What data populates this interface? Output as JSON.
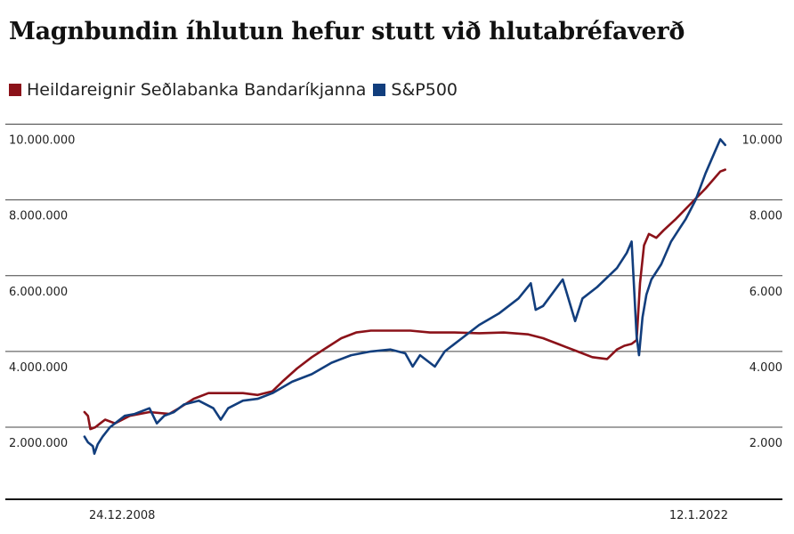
{
  "chart_data": {
    "type": "line",
    "title": "Magnbundin íhlutun hefur stutt við hlutabréfaverð",
    "legend_position": "top-left",
    "grid": true,
    "x_tick_labels": [
      "24.12.2008",
      "12.1.2022"
    ],
    "xlim": [
      2009.0,
      2022.06
    ],
    "left_axis": {
      "ticks": [
        10000000,
        8000000,
        6000000,
        4000000,
        2000000
      ],
      "tick_labels": [
        "10.000.000",
        "8.000.000",
        "6.000.000",
        "4.000.000",
        "2.000.000"
      ],
      "ylim": [
        0,
        10000000
      ]
    },
    "right_axis": {
      "ticks": [
        10000,
        8000,
        6000,
        4000,
        2000
      ],
      "tick_labels": [
        "10.000",
        "8.000",
        "6.000",
        "4.000",
        "2.000"
      ],
      "ylim": [
        0,
        10000
      ]
    },
    "series": [
      {
        "name": "Heildareignir Seðlabanka Bandaríkjanna",
        "color": "#8b1219",
        "axis": "left",
        "x": [
          2008.98,
          2009.05,
          2009.1,
          2009.2,
          2009.3,
          2009.4,
          2009.6,
          2009.9,
          2010.3,
          2010.7,
          2010.9,
          2011.2,
          2011.5,
          2011.8,
          2012.2,
          2012.5,
          2012.8,
          2013.0,
          2013.3,
          2013.6,
          2013.9,
          2014.2,
          2014.5,
          2014.8,
          2015.2,
          2015.6,
          2016.0,
          2016.5,
          2017.0,
          2017.5,
          2018.0,
          2018.3,
          2018.6,
          2019.0,
          2019.3,
          2019.6,
          2019.8,
          2019.95,
          2020.1,
          2020.2,
          2020.27,
          2020.35,
          2020.45,
          2020.6,
          2020.75,
          2021.0,
          2021.3,
          2021.6,
          2021.9,
          2022.0
        ],
        "y": [
          2400000,
          2300000,
          1950000,
          2000000,
          2100000,
          2200000,
          2100000,
          2300000,
          2400000,
          2350000,
          2500000,
          2750000,
          2900000,
          2900000,
          2900000,
          2850000,
          2950000,
          3200000,
          3550000,
          3850000,
          4100000,
          4350000,
          4500000,
          4550000,
          4550000,
          4550000,
          4500000,
          4500000,
          4480000,
          4500000,
          4450000,
          4350000,
          4200000,
          4000000,
          3850000,
          3800000,
          4050000,
          4150000,
          4200000,
          4300000,
          5800000,
          6800000,
          7100000,
          7000000,
          7200000,
          7500000,
          7900000,
          8300000,
          8750000,
          8800000
        ]
      },
      {
        "name": "S&P500",
        "color": "#123e7d",
        "axis": "right",
        "x": [
          2008.98,
          2009.05,
          2009.15,
          2009.18,
          2009.25,
          2009.35,
          2009.5,
          2009.8,
          2010.0,
          2010.3,
          2010.45,
          2010.6,
          2010.8,
          2011.0,
          2011.3,
          2011.6,
          2011.75,
          2011.9,
          2012.2,
          2012.5,
          2012.8,
          2013.2,
          2013.6,
          2014.0,
          2014.4,
          2014.8,
          2015.2,
          2015.5,
          2015.65,
          2015.8,
          2016.1,
          2016.3,
          2016.6,
          2017.0,
          2017.4,
          2017.8,
          2018.05,
          2018.15,
          2018.3,
          2018.7,
          2018.95,
          2019.1,
          2019.4,
          2019.8,
          2020.0,
          2020.1,
          2020.2,
          2020.25,
          2020.32,
          2020.4,
          2020.5,
          2020.7,
          2020.9,
          2021.0,
          2021.2,
          2021.4,
          2021.6,
          2021.8,
          2021.9,
          2022.0
        ],
        "y": [
          1750,
          1600,
          1500,
          1300,
          1550,
          1750,
          2000,
          2300,
          2350,
          2500,
          2100,
          2300,
          2400,
          2600,
          2700,
          2500,
          2200,
          2500,
          2700,
          2750,
          2900,
          3200,
          3400,
          3700,
          3900,
          4000,
          4050,
          3950,
          3600,
          3900,
          3600,
          4000,
          4300,
          4700,
          5000,
          5400,
          5800,
          5100,
          5200,
          5900,
          4800,
          5400,
          5700,
          6200,
          6600,
          6900,
          4400,
          3900,
          4900,
          5500,
          5900,
          6300,
          6900,
          7100,
          7500,
          8000,
          8700,
          9300,
          9600,
          9450
        ]
      }
    ]
  }
}
